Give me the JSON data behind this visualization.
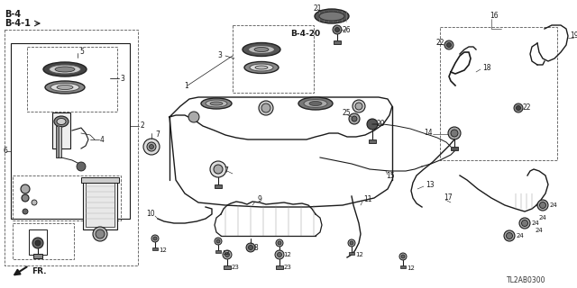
{
  "bg_color": "#ffffff",
  "line_color": "#1a1a1a",
  "watermark": "TL2AB0300",
  "figsize": [
    6.4,
    3.2
  ],
  "dpi": 100
}
